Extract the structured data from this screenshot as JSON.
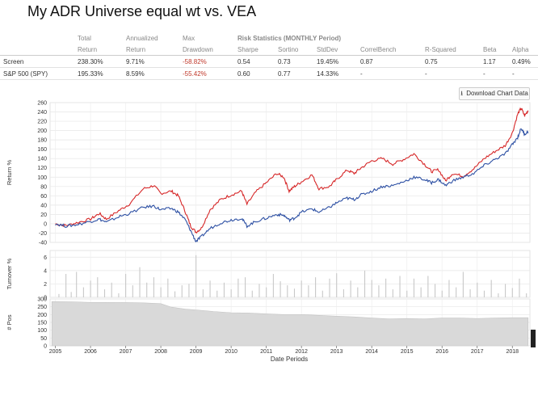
{
  "page": {
    "title": "My ADR Universe equal wt vs. VEA"
  },
  "stats": {
    "headers_top": [
      "",
      "Total",
      "Annualized",
      "Max",
      "Risk Statistics (MONTHLY Period)",
      "",
      "",
      "",
      "",
      "",
      "",
      ""
    ],
    "headers_bottom": [
      "",
      "Return",
      "Return",
      "Drawdown",
      "Sharpe",
      "Sortino",
      "StdDev",
      "CorrelBench",
      "R-Squared",
      "Beta",
      "Alpha"
    ],
    "rows": [
      [
        "Screen",
        "238.30%",
        "9.71%",
        "-58.82%",
        "0.54",
        "0.73",
        "19.45%",
        "0.87",
        "0.75",
        "1.17",
        "0.49%"
      ],
      [
        "S&P 500 (SPY)",
        "195.33%",
        "8.59%",
        "-55.42%",
        "0.60",
        "0.77",
        "14.33%",
        "-",
        "-",
        "-",
        "-"
      ]
    ]
  },
  "download_label": "Download Chart Data",
  "chart_data": [
    {
      "type": "line",
      "ylabel": "Return %",
      "ylim": [
        -40,
        260
      ],
      "yticks": [
        -40,
        -20,
        0,
        20,
        40,
        60,
        80,
        100,
        120,
        140,
        160,
        180,
        200,
        220,
        240,
        260
      ],
      "series": [
        {
          "color": "#d62728",
          "points": [
            [
              2005.0,
              0
            ],
            [
              2005.3,
              -4
            ],
            [
              2005.6,
              2
            ],
            [
              2006.0,
              10
            ],
            [
              2006.25,
              22
            ],
            [
              2006.45,
              10
            ],
            [
              2006.8,
              28
            ],
            [
              2007.1,
              42
            ],
            [
              2007.5,
              75
            ],
            [
              2007.8,
              82
            ],
            [
              2008.0,
              65
            ],
            [
              2008.3,
              70
            ],
            [
              2008.5,
              60
            ],
            [
              2008.7,
              25
            ],
            [
              2008.85,
              -5
            ],
            [
              2009.0,
              -18
            ],
            [
              2009.15,
              -10
            ],
            [
              2009.4,
              30
            ],
            [
              2009.7,
              52
            ],
            [
              2010.0,
              62
            ],
            [
              2010.3,
              70
            ],
            [
              2010.45,
              42
            ],
            [
              2010.7,
              68
            ],
            [
              2011.0,
              88
            ],
            [
              2011.3,
              108
            ],
            [
              2011.5,
              100
            ],
            [
              2011.65,
              70
            ],
            [
              2011.8,
              80
            ],
            [
              2012.0,
              90
            ],
            [
              2012.3,
              105
            ],
            [
              2012.5,
              75
            ],
            [
              2012.8,
              80
            ],
            [
              2013.0,
              95
            ],
            [
              2013.3,
              115
            ],
            [
              2013.5,
              108
            ],
            [
              2013.7,
              120
            ],
            [
              2014.0,
              135
            ],
            [
              2014.3,
              140
            ],
            [
              2014.6,
              128
            ],
            [
              2014.9,
              138
            ],
            [
              2015.2,
              150
            ],
            [
              2015.5,
              128
            ],
            [
              2015.7,
              112
            ],
            [
              2015.9,
              116
            ],
            [
              2016.1,
              92
            ],
            [
              2016.3,
              108
            ],
            [
              2016.6,
              102
            ],
            [
              2016.9,
              118
            ],
            [
              2017.2,
              140
            ],
            [
              2017.5,
              155
            ],
            [
              2017.8,
              168
            ],
            [
              2018.0,
              195
            ],
            [
              2018.15,
              235
            ],
            [
              2018.25,
              248
            ],
            [
              2018.35,
              232
            ],
            [
              2018.45,
              243
            ]
          ]
        },
        {
          "color": "#2c4fa3",
          "points": [
            [
              2005.0,
              0
            ],
            [
              2005.3,
              -5
            ],
            [
              2005.6,
              -2
            ],
            [
              2006.0,
              5
            ],
            [
              2006.25,
              10
            ],
            [
              2006.45,
              3
            ],
            [
              2006.8,
              15
            ],
            [
              2007.1,
              22
            ],
            [
              2007.5,
              35
            ],
            [
              2007.8,
              38
            ],
            [
              2008.0,
              30
            ],
            [
              2008.3,
              33
            ],
            [
              2008.5,
              25
            ],
            [
              2008.7,
              8
            ],
            [
              2008.85,
              -15
            ],
            [
              2009.0,
              -38
            ],
            [
              2009.15,
              -28
            ],
            [
              2009.4,
              -10
            ],
            [
              2009.7,
              2
            ],
            [
              2010.0,
              8
            ],
            [
              2010.3,
              12
            ],
            [
              2010.45,
              -5
            ],
            [
              2010.7,
              5
            ],
            [
              2011.0,
              12
            ],
            [
              2011.3,
              20
            ],
            [
              2011.5,
              18
            ],
            [
              2011.65,
              8
            ],
            [
              2011.8,
              12
            ],
            [
              2012.0,
              25
            ],
            [
              2012.3,
              32
            ],
            [
              2012.5,
              25
            ],
            [
              2012.8,
              35
            ],
            [
              2013.0,
              45
            ],
            [
              2013.3,
              55
            ],
            [
              2013.5,
              52
            ],
            [
              2013.7,
              62
            ],
            [
              2014.0,
              70
            ],
            [
              2014.3,
              80
            ],
            [
              2014.6,
              82
            ],
            [
              2014.9,
              90
            ],
            [
              2015.2,
              100
            ],
            [
              2015.5,
              95
            ],
            [
              2015.7,
              88
            ],
            [
              2015.9,
              95
            ],
            [
              2016.1,
              82
            ],
            [
              2016.3,
              92
            ],
            [
              2016.6,
              100
            ],
            [
              2016.9,
              108
            ],
            [
              2017.2,
              125
            ],
            [
              2017.5,
              138
            ],
            [
              2017.8,
              150
            ],
            [
              2018.0,
              170
            ],
            [
              2018.15,
              185
            ],
            [
              2018.25,
              205
            ],
            [
              2018.35,
              192
            ],
            [
              2018.45,
              198
            ]
          ]
        }
      ]
    },
    {
      "type": "bar",
      "ylabel": "Turnover %",
      "ylim": [
        0,
        7
      ],
      "yticks": [
        0,
        2,
        4,
        6
      ],
      "values_note": "weekly turnover bars",
      "bars": [
        [
          2005.1,
          0.5
        ],
        [
          2005.3,
          3.5
        ],
        [
          2005.45,
          0.8
        ],
        [
          2005.6,
          3.8
        ],
        [
          2005.8,
          1.5
        ],
        [
          2006.0,
          2.5
        ],
        [
          2006.2,
          3.0
        ],
        [
          2006.4,
          1.2
        ],
        [
          2006.6,
          2.2
        ],
        [
          2006.8,
          0.6
        ],
        [
          2007.0,
          3.5
        ],
        [
          2007.2,
          1.8
        ],
        [
          2007.4,
          4.5
        ],
        [
          2007.6,
          2.2
        ],
        [
          2007.8,
          3.0
        ],
        [
          2008.0,
          1.5
        ],
        [
          2008.2,
          2.8
        ],
        [
          2008.4,
          0.9
        ],
        [
          2008.6,
          1.8
        ],
        [
          2008.8,
          2.0
        ],
        [
          2009.0,
          6.3
        ],
        [
          2009.2,
          1.2
        ],
        [
          2009.4,
          2.5
        ],
        [
          2009.6,
          1.0
        ],
        [
          2009.8,
          2.2
        ],
        [
          2010.0,
          1.2
        ],
        [
          2010.2,
          2.8
        ],
        [
          2010.4,
          3.0
        ],
        [
          2010.6,
          1.0
        ],
        [
          2010.8,
          2.0
        ],
        [
          2011.0,
          1.5
        ],
        [
          2011.2,
          3.5
        ],
        [
          2011.4,
          2.4
        ],
        [
          2011.6,
          1.8
        ],
        [
          2011.8,
          1.3
        ],
        [
          2012.0,
          2.5
        ],
        [
          2012.2,
          1.8
        ],
        [
          2012.4,
          3.0
        ],
        [
          2012.6,
          1.0
        ],
        [
          2012.8,
          2.8
        ],
        [
          2013.0,
          3.6
        ],
        [
          2013.2,
          1.2
        ],
        [
          2013.4,
          2.5
        ],
        [
          2013.6,
          1.5
        ],
        [
          2013.8,
          4.0
        ],
        [
          2014.0,
          2.6
        ],
        [
          2014.2,
          1.8
        ],
        [
          2014.4,
          2.8
        ],
        [
          2014.6,
          1.2
        ],
        [
          2014.8,
          3.2
        ],
        [
          2015.0,
          1.0
        ],
        [
          2015.2,
          2.8
        ],
        [
          2015.4,
          1.5
        ],
        [
          2015.6,
          3.2
        ],
        [
          2015.8,
          2.0
        ],
        [
          2016.0,
          1.0
        ],
        [
          2016.2,
          2.6
        ],
        [
          2016.4,
          1.5
        ],
        [
          2016.6,
          3.8
        ],
        [
          2016.8,
          1.2
        ],
        [
          2017.0,
          2.2
        ],
        [
          2017.2,
          1.0
        ],
        [
          2017.4,
          2.6
        ],
        [
          2017.6,
          0.6
        ],
        [
          2017.8,
          2.0
        ],
        [
          2018.0,
          1.4
        ],
        [
          2018.2,
          2.8
        ],
        [
          2018.4,
          0.6
        ]
      ]
    },
    {
      "type": "area",
      "ylabel": "# Pos",
      "ylim": [
        0,
        300
      ],
      "yticks": [
        0,
        50,
        100,
        150,
        200,
        250,
        300
      ],
      "xlabel": "Date Periods",
      "xticks": [
        "2005",
        "2006",
        "2007",
        "2008",
        "2009",
        "2010",
        "2011",
        "2012",
        "2013",
        "2014",
        "2015",
        "2016",
        "2017",
        "2018"
      ],
      "points": [
        [
          2004.9,
          283
        ],
        [
          2005.5,
          282
        ],
        [
          2006.0,
          278
        ],
        [
          2007.0,
          277
        ],
        [
          2007.5,
          275
        ],
        [
          2008.0,
          270
        ],
        [
          2008.3,
          248
        ],
        [
          2008.7,
          235
        ],
        [
          2009.0,
          230
        ],
        [
          2009.5,
          220
        ],
        [
          2010.0,
          212
        ],
        [
          2010.5,
          210
        ],
        [
          2011.0,
          205
        ],
        [
          2011.5,
          200
        ],
        [
          2012.0,
          200
        ],
        [
          2012.5,
          195
        ],
        [
          2013.0,
          190
        ],
        [
          2013.5,
          185
        ],
        [
          2014.0,
          178
        ],
        [
          2014.5,
          172
        ],
        [
          2015.0,
          175
        ],
        [
          2015.5,
          172
        ],
        [
          2016.0,
          178
        ],
        [
          2016.5,
          178
        ],
        [
          2017.0,
          175
        ],
        [
          2017.5,
          178
        ],
        [
          2018.0,
          180
        ],
        [
          2018.45,
          180
        ]
      ]
    }
  ]
}
